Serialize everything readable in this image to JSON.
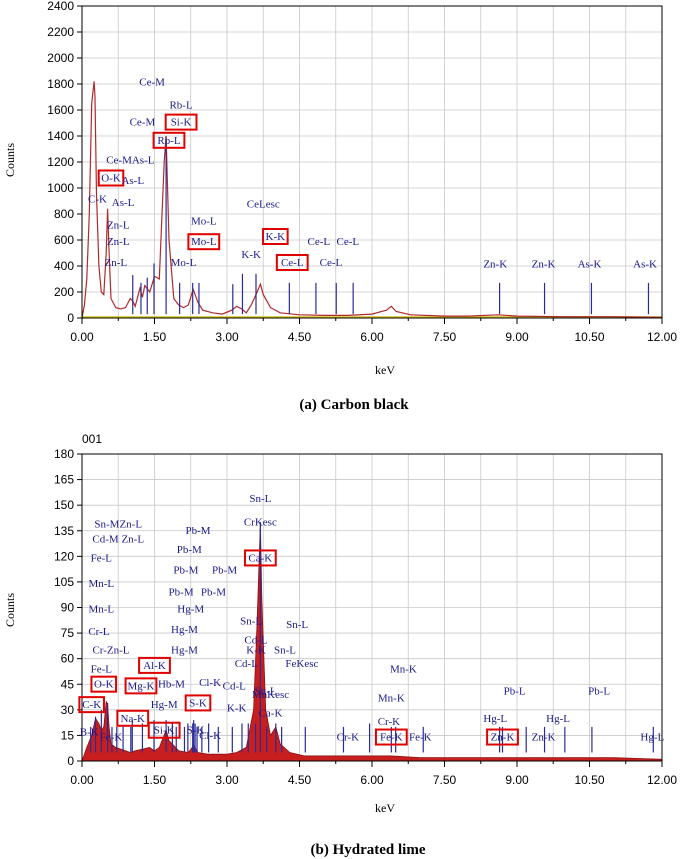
{
  "chart_data": [
    {
      "type": "line",
      "caption": "(a) Carbon black",
      "xlabel": "keV",
      "ylabel": "Counts",
      "xlim": [
        0,
        12
      ],
      "ylim": [
        0,
        2400
      ],
      "xticks": [
        "0.00",
        "0.75",
        "1.50",
        "2.25",
        "3.00",
        "3.75",
        "4.50",
        "5.25",
        "6.00",
        "6.75",
        "7.50",
        "8.25",
        "9.00",
        "9.75",
        "10.50",
        "11.25",
        "12.00"
      ],
      "xtick_labels_shown": [
        "0.00",
        "1.50",
        "3.00",
        "4.50",
        "6.00",
        "7.50",
        "9.00",
        "10.50",
        "12.00"
      ],
      "yticks": [
        0,
        200,
        400,
        600,
        800,
        1000,
        1200,
        1400,
        1600,
        1800,
        2000,
        2200,
        2400
      ],
      "colors": {
        "spectrum": "#b02a2a",
        "baseline": "#d4c21a",
        "markers": "#2a2a9a",
        "labels": "#1a1a8c",
        "highlight": "#e00000"
      },
      "series": [
        {
          "x": [
            0.0,
            0.05,
            0.1,
            0.15,
            0.2,
            0.25,
            0.27,
            0.3,
            0.35,
            0.4,
            0.45,
            0.5,
            0.53,
            0.56,
            0.6,
            0.7,
            0.8,
            0.9,
            1.0,
            1.05,
            1.1,
            1.2,
            1.25,
            1.3,
            1.4,
            1.5,
            1.6,
            1.7,
            1.74,
            1.8,
            1.9,
            2.0,
            2.1,
            2.2,
            2.3,
            2.4,
            2.5,
            2.7,
            2.9,
            3.1,
            3.2,
            3.3,
            3.4,
            3.5,
            3.6,
            3.69,
            3.75,
            3.9,
            4.1,
            4.5,
            5.0,
            5.5,
            6.0,
            6.3,
            6.4,
            6.5,
            6.8,
            7.5,
            8.0,
            8.6,
            9.0,
            10.0,
            11.0,
            12.0
          ],
          "values": [
            0,
            100,
            300,
            800,
            1650,
            1820,
            1700,
            950,
            400,
            200,
            180,
            500,
            840,
            500,
            150,
            80,
            70,
            80,
            150,
            130,
            90,
            230,
            160,
            250,
            200,
            320,
            300,
            1200,
            1400,
            600,
            150,
            100,
            80,
            100,
            220,
            120,
            60,
            40,
            30,
            60,
            90,
            70,
            40,
            100,
            180,
            260,
            180,
            80,
            40,
            25,
            20,
            20,
            30,
            60,
            90,
            50,
            25,
            15,
            15,
            25,
            15,
            10,
            10,
            5
          ]
        }
      ],
      "peak_markers": [
        {
          "x": 1.05,
          "h": 330
        },
        {
          "x": 1.22,
          "h": 270
        },
        {
          "x": 1.35,
          "h": 310
        },
        {
          "x": 1.49,
          "h": 420
        },
        {
          "x": 1.74,
          "h": 1380
        },
        {
          "x": 2.02,
          "h": 270
        },
        {
          "x": 2.29,
          "h": 270
        },
        {
          "x": 2.42,
          "h": 270
        },
        {
          "x": 3.12,
          "h": 260
        },
        {
          "x": 3.32,
          "h": 340
        },
        {
          "x": 3.6,
          "h": 340
        },
        {
          "x": 4.29,
          "h": 270
        },
        {
          "x": 4.84,
          "h": 270
        },
        {
          "x": 5.26,
          "h": 270
        },
        {
          "x": 5.61,
          "h": 270
        },
        {
          "x": 8.64,
          "h": 270
        },
        {
          "x": 9.57,
          "h": 270
        },
        {
          "x": 10.54,
          "h": 270
        },
        {
          "x": 11.72,
          "h": 270
        }
      ],
      "peak_labels": [
        {
          "text": "Ce-M",
          "x": 1.45,
          "y": 1790,
          "box": false
        },
        {
          "text": "Rb-L",
          "x": 2.05,
          "y": 1610,
          "box": false
        },
        {
          "text": "Ce-M",
          "x": 1.25,
          "y": 1480,
          "box": false
        },
        {
          "text": "Si-K",
          "x": 2.05,
          "y": 1480,
          "box": true
        },
        {
          "text": "Rb-L",
          "x": 1.8,
          "y": 1340,
          "box": true
        },
        {
          "text": "Ce-MAs-L",
          "x": 1.0,
          "y": 1190,
          "box": false
        },
        {
          "text": "O-K",
          "x": 0.6,
          "y": 1050,
          "box": true
        },
        {
          "text": "As-L",
          "x": 1.05,
          "y": 1030,
          "box": false
        },
        {
          "text": "C-K",
          "x": 0.32,
          "y": 890,
          "box": false
        },
        {
          "text": "As-L",
          "x": 0.85,
          "y": 860,
          "box": false
        },
        {
          "text": "CeLesc",
          "x": 3.75,
          "y": 850,
          "box": false
        },
        {
          "text": "Zn-L",
          "x": 0.75,
          "y": 690,
          "box": false
        },
        {
          "text": "Mo-L",
          "x": 2.52,
          "y": 720,
          "box": false
        },
        {
          "text": "Zn-L",
          "x": 0.75,
          "y": 560,
          "box": false
        },
        {
          "text": "Mo-L",
          "x": 2.52,
          "y": 560,
          "box": true
        },
        {
          "text": "K-K",
          "x": 4.0,
          "y": 600,
          "box": true
        },
        {
          "text": "Ce-L",
          "x": 4.9,
          "y": 560,
          "box": false
        },
        {
          "text": "Ce-L",
          "x": 5.5,
          "y": 560,
          "box": false
        },
        {
          "text": "K-K",
          "x": 3.5,
          "y": 460,
          "box": false
        },
        {
          "text": "Ce-L",
          "x": 4.35,
          "y": 400,
          "box": true
        },
        {
          "text": "Ce-L",
          "x": 5.15,
          "y": 400,
          "box": false
        },
        {
          "text": "Zn-L",
          "x": 0.7,
          "y": 400,
          "box": false
        },
        {
          "text": "Mo-L",
          "x": 2.1,
          "y": 400,
          "box": false
        },
        {
          "text": "Zn-K",
          "x": 8.55,
          "y": 390,
          "box": false
        },
        {
          "text": "Zn-K",
          "x": 9.55,
          "y": 390,
          "box": false
        },
        {
          "text": "As-K",
          "x": 10.5,
          "y": 390,
          "box": false
        },
        {
          "text": "As-K",
          "x": 11.65,
          "y": 390,
          "box": false
        }
      ]
    },
    {
      "type": "line",
      "caption": "(b) Hydrated lime",
      "file_label": "001",
      "xlabel": "keV",
      "ylabel": "Counts",
      "xlim": [
        0,
        12
      ],
      "ylim": [
        0,
        180
      ],
      "xticks": [
        "0.00",
        "0.75",
        "1.50",
        "2.25",
        "3.00",
        "3.75",
        "4.50",
        "5.25",
        "6.00",
        "6.75",
        "7.50",
        "8.25",
        "9.00",
        "9.75",
        "10.50",
        "11.25",
        "12.00"
      ],
      "xtick_labels_shown": [
        "0.00",
        "1.50",
        "3.00",
        "4.50",
        "6.00",
        "7.50",
        "9.00",
        "10.50",
        "12.00"
      ],
      "yticks": [
        0,
        15,
        30,
        45,
        60,
        75,
        90,
        105,
        120,
        135,
        150,
        165,
        180
      ],
      "colors": {
        "spectrum_fill": "#c81e1e",
        "spectrum_line": "#8a1010",
        "markers": "#2a2a9a",
        "labels": "#1a1a8c",
        "highlight": "#e00000"
      },
      "series": [
        {
          "x": [
            0.0,
            0.1,
            0.2,
            0.28,
            0.35,
            0.4,
            0.45,
            0.5,
            0.53,
            0.56,
            0.6,
            0.7,
            0.8,
            0.9,
            1.0,
            1.1,
            1.25,
            1.4,
            1.5,
            1.6,
            1.74,
            1.8,
            2.0,
            2.2,
            2.31,
            2.4,
            2.6,
            2.8,
            3.0,
            3.2,
            3.4,
            3.55,
            3.62,
            3.69,
            3.72,
            3.8,
            3.9,
            4.01,
            4.1,
            4.3,
            4.6,
            5.0,
            5.5,
            6.0,
            6.4,
            7.0,
            8.0,
            9.0,
            10.0,
            11.0,
            12.0
          ],
          "values": [
            0,
            8,
            15,
            25,
            22,
            18,
            20,
            35,
            33,
            20,
            10,
            8,
            7,
            6,
            5,
            6,
            7,
            8,
            6,
            8,
            18,
            12,
            6,
            5,
            9,
            5,
            4,
            4,
            4,
            5,
            8,
            30,
            80,
            140,
            95,
            30,
            15,
            20,
            10,
            5,
            3,
            3,
            3,
            3,
            3,
            2,
            2,
            2,
            2,
            2,
            1
          ]
        }
      ],
      "peak_markers": [
        {
          "x": 0.18,
          "h": 20
        },
        {
          "x": 0.28,
          "h": 26
        },
        {
          "x": 0.4,
          "h": 30
        },
        {
          "x": 0.53,
          "h": 34
        },
        {
          "x": 0.62,
          "h": 20
        },
        {
          "x": 0.72,
          "h": 20
        },
        {
          "x": 0.85,
          "h": 20
        },
        {
          "x": 1.01,
          "h": 20
        },
        {
          "x": 1.04,
          "h": 24
        },
        {
          "x": 1.25,
          "h": 22
        },
        {
          "x": 1.49,
          "h": 24
        },
        {
          "x": 1.74,
          "h": 24
        },
        {
          "x": 1.87,
          "h": 22
        },
        {
          "x": 1.95,
          "h": 20
        },
        {
          "x": 2.12,
          "h": 20
        },
        {
          "x": 2.19,
          "h": 22
        },
        {
          "x": 2.29,
          "h": 22
        },
        {
          "x": 2.31,
          "h": 24
        },
        {
          "x": 2.34,
          "h": 22
        },
        {
          "x": 2.38,
          "h": 20
        },
        {
          "x": 2.48,
          "h": 20
        },
        {
          "x": 2.62,
          "h": 22
        },
        {
          "x": 2.82,
          "h": 20
        },
        {
          "x": 3.11,
          "h": 20
        },
        {
          "x": 3.31,
          "h": 22
        },
        {
          "x": 3.44,
          "h": 22
        },
        {
          "x": 3.59,
          "h": 22
        },
        {
          "x": 3.69,
          "h": 140
        },
        {
          "x": 3.82,
          "h": 20
        },
        {
          "x": 4.01,
          "h": 22
        },
        {
          "x": 4.13,
          "h": 20
        },
        {
          "x": 4.62,
          "h": 20
        },
        {
          "x": 5.41,
          "h": 20
        },
        {
          "x": 5.95,
          "h": 22
        },
        {
          "x": 6.4,
          "h": 20
        },
        {
          "x": 6.49,
          "h": 20
        },
        {
          "x": 7.06,
          "h": 20
        },
        {
          "x": 8.64,
          "h": 20
        },
        {
          "x": 8.7,
          "h": 20
        },
        {
          "x": 9.19,
          "h": 20
        },
        {
          "x": 9.57,
          "h": 20
        },
        {
          "x": 9.99,
          "h": 20
        },
        {
          "x": 10.55,
          "h": 20
        },
        {
          "x": 11.82,
          "h": 20
        }
      ],
      "peak_labels": [
        {
          "text": "Sn-L",
          "x": 3.69,
          "y": 152,
          "box": false
        },
        {
          "text": "Sn-MZn-L",
          "x": 0.75,
          "y": 137,
          "box": false
        },
        {
          "text": "Pb-M",
          "x": 2.4,
          "y": 133,
          "box": false
        },
        {
          "text": "CrKesc",
          "x": 3.69,
          "y": 138,
          "box": false
        },
        {
          "text": "Cd-M Zn-L",
          "x": 0.75,
          "y": 128,
          "box": false
        },
        {
          "text": "Pb-M",
          "x": 2.22,
          "y": 122,
          "box": false
        },
        {
          "text": "Fe-L",
          "x": 0.4,
          "y": 117,
          "box": false
        },
        {
          "text": "Ca-K",
          "x": 3.69,
          "y": 117,
          "box": true
        },
        {
          "text": "Pb-M",
          "x": 2.15,
          "y": 110,
          "box": false
        },
        {
          "text": "Pb-M",
          "x": 2.95,
          "y": 110,
          "box": false
        },
        {
          "text": "Mn-L",
          "x": 0.4,
          "y": 102,
          "box": false
        },
        {
          "text": "Pb-M",
          "x": 2.05,
          "y": 97,
          "box": false
        },
        {
          "text": "Pb-M",
          "x": 2.72,
          "y": 97,
          "box": false
        },
        {
          "text": "Mn-L",
          "x": 0.4,
          "y": 87,
          "box": false
        },
        {
          "text": "Hg-M",
          "x": 2.25,
          "y": 87,
          "box": false
        },
        {
          "text": "Sn-L",
          "x": 3.5,
          "y": 80,
          "box": false
        },
        {
          "text": "Sn-L",
          "x": 4.45,
          "y": 78,
          "box": false
        },
        {
          "text": "Cr-L",
          "x": 0.35,
          "y": 74,
          "box": false
        },
        {
          "text": "Hg-M",
          "x": 2.12,
          "y": 75,
          "box": false
        },
        {
          "text": "Cd-L",
          "x": 3.6,
          "y": 69,
          "box": false
        },
        {
          "text": "Cr-Zn-L",
          "x": 0.6,
          "y": 63,
          "box": false
        },
        {
          "text": "Hg-M",
          "x": 2.12,
          "y": 63,
          "box": false
        },
        {
          "text": "K-K",
          "x": 3.6,
          "y": 63,
          "box": false
        },
        {
          "text": "Sn-L",
          "x": 4.2,
          "y": 63,
          "box": false
        },
        {
          "text": "Fe-L",
          "x": 0.4,
          "y": 52,
          "box": false
        },
        {
          "text": "Al-K",
          "x": 1.5,
          "y": 54,
          "box": true
        },
        {
          "text": "Cd-L",
          "x": 3.4,
          "y": 55,
          "box": false
        },
        {
          "text": "FeKesc",
          "x": 4.55,
          "y": 55,
          "box": false
        },
        {
          "text": "Mn-K",
          "x": 6.65,
          "y": 52,
          "box": false
        },
        {
          "text": "O-K",
          "x": 0.45,
          "y": 43,
          "box": true
        },
        {
          "text": "Mg-K",
          "x": 1.22,
          "y": 42,
          "box": true
        },
        {
          "text": "Hb-M",
          "x": 1.85,
          "y": 43,
          "box": false
        },
        {
          "text": "Cl-K",
          "x": 2.65,
          "y": 44,
          "box": false
        },
        {
          "text": "Cd-L",
          "x": 3.15,
          "y": 42,
          "box": false
        },
        {
          "text": "Sn-L",
          "x": 3.8,
          "y": 39,
          "box": false
        },
        {
          "text": "Mn-K",
          "x": 6.4,
          "y": 35,
          "box": false
        },
        {
          "text": "Pb-L",
          "x": 8.95,
          "y": 39,
          "box": false
        },
        {
          "text": "Pb-L",
          "x": 10.7,
          "y": 39,
          "box": false
        },
        {
          "text": "MnKesc",
          "x": 3.9,
          "y": 37,
          "box": false
        },
        {
          "text": "C-K",
          "x": 0.2,
          "y": 31,
          "box": true
        },
        {
          "text": "Hg-M",
          "x": 1.7,
          "y": 31,
          "box": false
        },
        {
          "text": "S-K",
          "x": 2.4,
          "y": 32,
          "box": true
        },
        {
          "text": "K-K",
          "x": 3.2,
          "y": 29,
          "box": false
        },
        {
          "text": "Ca-K",
          "x": 3.9,
          "y": 26,
          "box": false
        },
        {
          "text": "Cr-K",
          "x": 6.35,
          "y": 21,
          "box": false
        },
        {
          "text": "Hg-L",
          "x": 8.55,
          "y": 23,
          "box": false
        },
        {
          "text": "Hg-L",
          "x": 9.85,
          "y": 23,
          "box": false
        },
        {
          "text": "Na-K",
          "x": 1.05,
          "y": 23,
          "box": true
        },
        {
          "text": "B-K",
          "x": 0.15,
          "y": 15,
          "box": false
        },
        {
          "text": "Fe-K",
          "x": 0.6,
          "y": 12,
          "box": false
        },
        {
          "text": "Si-K",
          "x": 1.7,
          "y": 16,
          "box": true
        },
        {
          "text": "S-K",
          "x": 2.35,
          "y": 16,
          "box": false
        },
        {
          "text": "Cl-K",
          "x": 2.65,
          "y": 13,
          "box": false
        },
        {
          "text": "Cr-K",
          "x": 5.5,
          "y": 12,
          "box": false
        },
        {
          "text": "Fe-K",
          "x": 6.4,
          "y": 12,
          "box": true
        },
        {
          "text": "Fe-K",
          "x": 7.0,
          "y": 12,
          "box": false
        },
        {
          "text": "Zn-K",
          "x": 8.7,
          "y": 12,
          "box": true
        },
        {
          "text": "Zn-K",
          "x": 9.55,
          "y": 12,
          "box": false
        },
        {
          "text": "Hg-L",
          "x": 11.8,
          "y": 12,
          "box": false
        }
      ]
    }
  ]
}
